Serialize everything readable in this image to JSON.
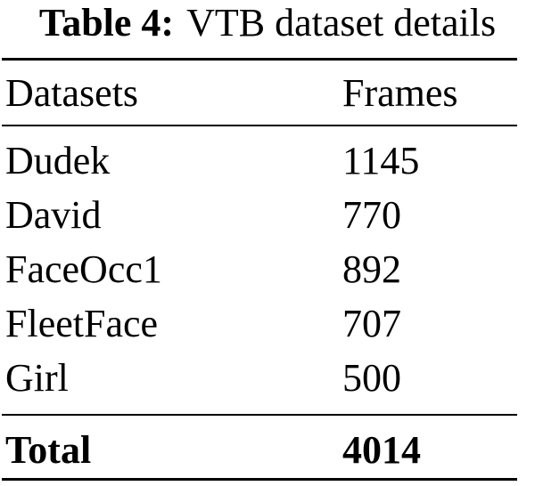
{
  "caption": {
    "label": "Table 4:",
    "text": "VTB dataset details"
  },
  "table": {
    "headers": [
      "Datasets",
      "Frames"
    ],
    "rows": [
      {
        "name": "Dudek",
        "frames": "1145"
      },
      {
        "name": "David",
        "frames": "770"
      },
      {
        "name": "FaceOcc1",
        "frames": "892"
      },
      {
        "name": "FleetFace",
        "frames": "707"
      },
      {
        "name": "Girl",
        "frames": "500"
      }
    ],
    "total": {
      "name": "Total",
      "frames": "4014"
    }
  }
}
